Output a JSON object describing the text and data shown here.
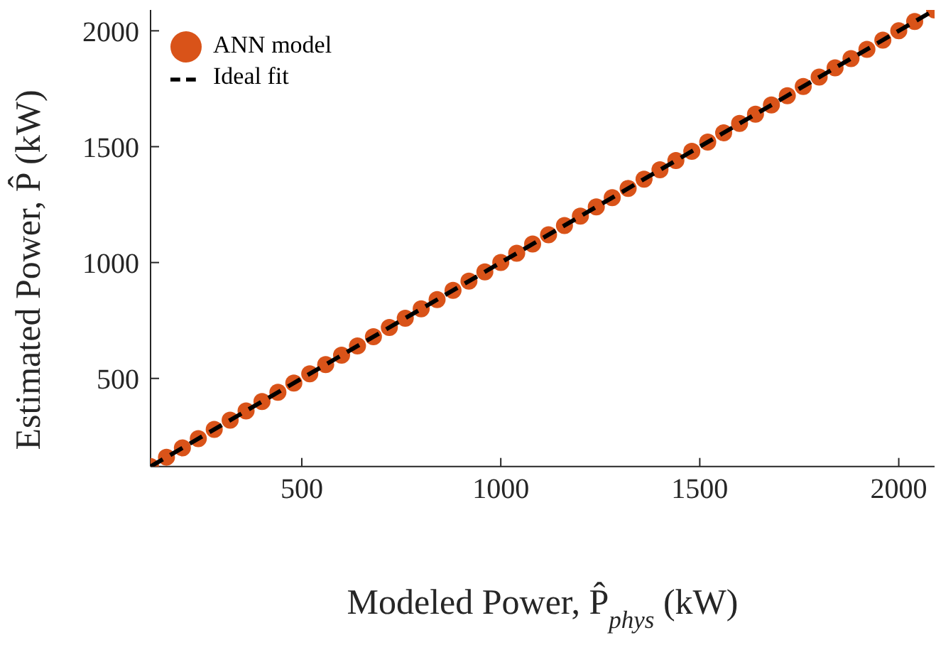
{
  "chart_data": {
    "type": "scatter",
    "xlabel": "Modeled Power, P̂$_{phys}$ (kW)",
    "ylabel": "Estimated Power, P̂ (kW)",
    "xlim": [
      120,
      2090
    ],
    "ylim": [
      120,
      2090
    ],
    "xticks": [
      500,
      1000,
      1500,
      2000
    ],
    "yticks": [
      500,
      1000,
      1500,
      2000
    ],
    "legend": "top left",
    "series": [
      {
        "name": "ANN model",
        "color": "#d95319",
        "marker": "circle",
        "x": [
          120,
          160,
          200,
          240,
          280,
          320,
          360,
          400,
          440,
          480,
          520,
          560,
          600,
          640,
          680,
          720,
          760,
          800,
          840,
          880,
          920,
          960,
          1000,
          1040,
          1080,
          1120,
          1160,
          1200,
          1240,
          1280,
          1320,
          1360,
          1400,
          1440,
          1480,
          1520,
          1560,
          1600,
          1640,
          1680,
          1720,
          1760,
          1800,
          1840,
          1880,
          1920,
          1960,
          2000,
          2040,
          2090
        ],
        "values": [
          120,
          160,
          200,
          240,
          280,
          320,
          360,
          400,
          440,
          480,
          520,
          560,
          600,
          640,
          680,
          720,
          760,
          800,
          840,
          880,
          920,
          960,
          1000,
          1040,
          1080,
          1120,
          1160,
          1200,
          1240,
          1280,
          1320,
          1360,
          1400,
          1440,
          1480,
          1520,
          1560,
          1600,
          1640,
          1680,
          1720,
          1760,
          1800,
          1840,
          1880,
          1920,
          1960,
          2000,
          2040,
          2090
        ]
      },
      {
        "name": "Ideal fit",
        "type": "line",
        "color": "#000000",
        "line_style": "dashed",
        "marker": "none",
        "x": [
          120,
          2090
        ],
        "values": [
          120,
          2090
        ]
      }
    ]
  }
}
